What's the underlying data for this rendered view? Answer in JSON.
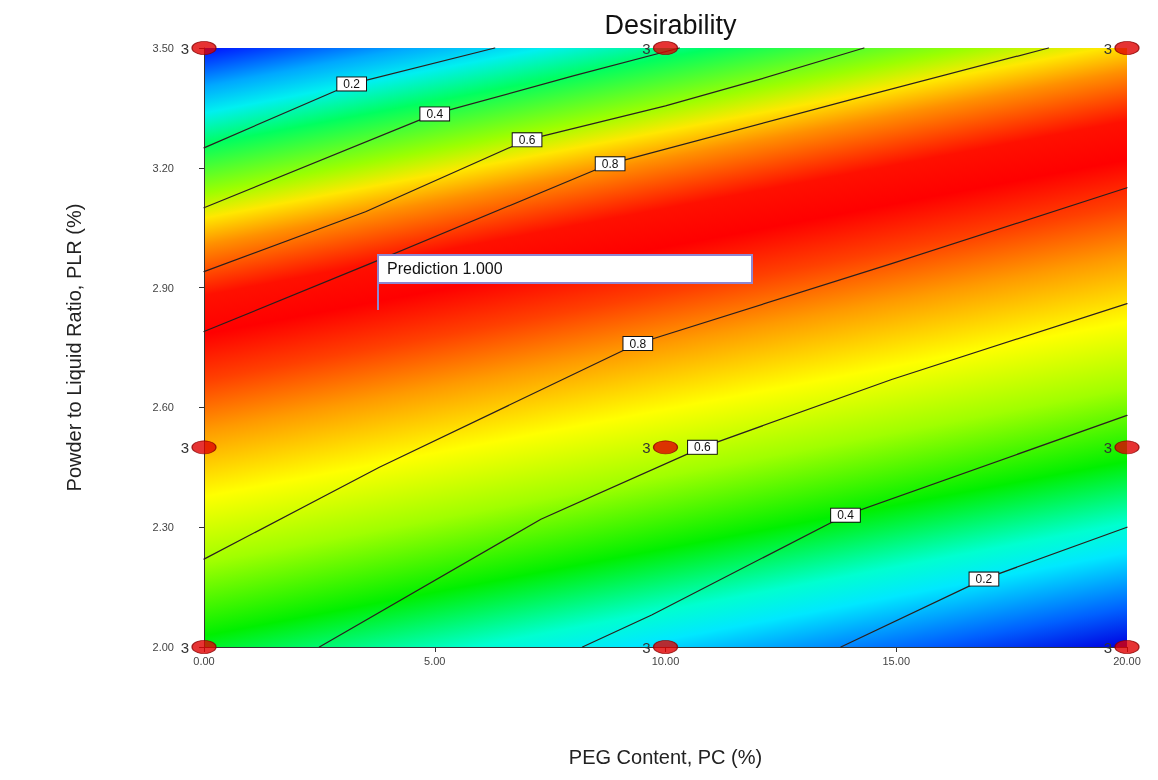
{
  "chart_data": {
    "type": "line",
    "title": "Desirability",
    "xlabel": "PEG Content, PC (%)",
    "ylabel": "Powder to Liquid Ratio, PLR (%)",
    "xlim": [
      0,
      20
    ],
    "xticks": [
      {
        "value": 0,
        "label": "0.00"
      },
      {
        "value": 5,
        "label": "5.00"
      },
      {
        "value": 10,
        "label": "10.00"
      },
      {
        "value": 15,
        "label": "15.00"
      },
      {
        "value": 20,
        "label": "20.00"
      }
    ],
    "ylim": [
      2,
      3.5
    ],
    "yticks": [
      {
        "value": 2,
        "label": "2.00"
      },
      {
        "value": 2.3,
        "label": "2.30"
      },
      {
        "value": 2.6,
        "label": "2.60"
      },
      {
        "value": 2.9,
        "label": "2.90"
      },
      {
        "value": 3.2,
        "label": "3.20"
      },
      {
        "value": 3.5,
        "label": "3.50"
      }
    ],
    "marker": "none",
    "line_style": "solid",
    "grid": false,
    "series": [
      {
        "color": "#2a1f1f",
        "x": [
          0,
          3.2,
          6.3
        ],
        "values": [
          3.25,
          3.41,
          3.5
        ]
      },
      {
        "color": "#2a1f1f",
        "x": [
          0,
          5,
          8,
          10.3
        ],
        "values": [
          3.1,
          3.335,
          3.43,
          3.5
        ]
      },
      {
        "color": "#2a1f1f",
        "x": [
          0,
          3.5,
          7,
          10,
          12,
          14.3
        ],
        "values": [
          2.94,
          3.09,
          3.27,
          3.355,
          3.42,
          3.5
        ]
      },
      {
        "color": "#2a1f1f",
        "x": [
          0,
          3.6,
          8.8,
          14,
          18.3
        ],
        "values": [
          2.79,
          2.96,
          3.21,
          3.37,
          3.5
        ]
      },
      {
        "color": "#2a1f1f",
        "x": [
          0,
          3.8,
          9.4,
          14.9,
          20
        ],
        "values": [
          2.22,
          2.45,
          2.76,
          2.96,
          3.15
        ]
      },
      {
        "color": "#2a1f1f",
        "x": [
          2.5,
          7.3,
          10.8,
          14.9,
          20
        ],
        "values": [
          2,
          2.32,
          2.5,
          2.67,
          2.86
        ]
      },
      {
        "color": "#2a1f1f",
        "x": [
          8.2,
          9.7,
          13.9,
          20
        ],
        "values": [
          2,
          2.08,
          2.33,
          2.58
        ]
      },
      {
        "color": "#2a1f1f",
        "x": [
          13.8,
          16.9,
          20
        ],
        "values": [
          2,
          2.17,
          2.3
        ]
      },
      {
        "type": "scatter",
        "marker": "circle",
        "color": "#e00000",
        "x": [
          0,
          10,
          20,
          0,
          10,
          20,
          0,
          10,
          20
        ],
        "values": [
          3.5,
          3.5,
          3.5,
          2.5,
          2.5,
          2.5,
          2,
          2,
          2
        ]
      }
    ],
    "annotations": [
      {
        "text": "3",
        "x": 0,
        "y": 3.5
      },
      {
        "text": "3",
        "x": 10,
        "y": 3.5
      },
      {
        "text": "3",
        "x": 20,
        "y": 3.5
      },
      {
        "text": "3",
        "x": 0,
        "y": 2.5
      },
      {
        "text": "3",
        "x": 10,
        "y": 2.5
      },
      {
        "text": "3",
        "x": 20,
        "y": 2.5
      },
      {
        "text": "3",
        "x": 0,
        "y": 2
      },
      {
        "text": "3",
        "x": 10,
        "y": 2
      },
      {
        "text": "3",
        "x": 20,
        "y": 2
      },
      {
        "text": "0.2",
        "x": 3.2,
        "y": 3.41
      },
      {
        "text": "0.4",
        "x": 5,
        "y": 3.335
      },
      {
        "text": "0.6",
        "x": 7,
        "y": 3.27
      },
      {
        "text": "0.8",
        "x": 8.8,
        "y": 3.21
      },
      {
        "text": "0.8",
        "x": 9.4,
        "y": 2.76
      },
      {
        "text": "0.6",
        "x": 10.8,
        "y": 2.5
      },
      {
        "text": "0.4",
        "x": 13.9,
        "y": 2.33
      },
      {
        "text": "0.2",
        "x": 16.9,
        "y": 2.17
      },
      "Prediction 1.000"
    ]
  }
}
